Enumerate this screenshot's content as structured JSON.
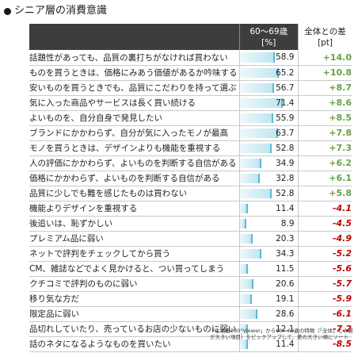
{
  "title": "シニア層の消費意識",
  "header": {
    "age_label": "60～69歳",
    "age_unit": "[%]",
    "diff_label": "全体との差",
    "diff_unit": "[pt]"
  },
  "rows": [
    {
      "label": "話題性があっても、品質の裏打ちがなければ買わない",
      "value": 58.9,
      "value_text": "58.9",
      "diff": "+14.0"
    },
    {
      "label": "ものを買うときは、価格にみあう価値があるか吟味する",
      "value": 65.2,
      "value_text": "65.2",
      "diff": "+10.8"
    },
    {
      "label": "安いものを買うときでも、品質にこだわりを持って選ぶ",
      "value": 56.7,
      "value_text": "56.7",
      "diff": "+8.7"
    },
    {
      "label": "気に入った商品やサービスは長く買い続ける",
      "value": 71.4,
      "value_text": "71.4",
      "diff": "+8.6"
    },
    {
      "label": "よいものを、自分自身で発見したい",
      "value": 55.9,
      "value_text": "55.9",
      "diff": "+8.5"
    },
    {
      "label": "ブランドにかかわらず、自分が気に入ったモノが最高",
      "value": 63.7,
      "value_text": "63.7",
      "diff": "+7.8"
    },
    {
      "label": "モノを買うときは、デザインよりも機能を重視する",
      "value": 52.8,
      "value_text": "52.8",
      "diff": "+7.3"
    },
    {
      "label": "人の評価にかかわらず、よいものを判断する自信がある",
      "value": 34.9,
      "value_text": "34.9",
      "diff": "+6.2"
    },
    {
      "label": "価格にかかわらず、よいものを判断する自信がある",
      "value": 32.8,
      "value_text": "32.8",
      "diff": "+6.1"
    },
    {
      "label": "品質に少しでも難を感じたものは買わない",
      "value": 52.8,
      "value_text": "52.8",
      "diff": "+5.8"
    },
    {
      "label": "機能よりデザインを重視する",
      "value": 11.4,
      "value_text": "11.4",
      "diff": "-4.1"
    },
    {
      "label": "後追いは、恥ずかしい",
      "value": 8.9,
      "value_text": "8.9",
      "diff": "-4.5"
    },
    {
      "label": "プレミアム品に弱い",
      "value": 20.3,
      "value_text": "20.3",
      "diff": "-4.9"
    },
    {
      "label": "ネットで評判をチェックしてから買う",
      "value": 34.3,
      "value_text": "34.3",
      "diff": "-5.2"
    },
    {
      "label": "CM、雑誌などでよく見かけると、つい買ってしまう",
      "value": 11.5,
      "value_text": "11.5",
      "diff": "-5.6"
    },
    {
      "label": "クチコミで評判のものに弱い",
      "value": 20.6,
      "value_text": "20.6",
      "diff": "-5.7"
    },
    {
      "label": "移り気な方だ",
      "value": 19.1,
      "value_text": "19.1",
      "diff": "-5.9"
    },
    {
      "label": "限定品に弱い",
      "value": 28.6,
      "value_text": "28.6",
      "diff": "-6.1"
    },
    {
      "label": "品切れしていたり、売っているお店の少ないものに弱い",
      "value": 12.1,
      "value_text": "12.1",
      "diff": "-7.2"
    },
    {
      "label": "話のネタになるようなものを買いたい",
      "value": 11.4,
      "value_text": "11.4",
      "diff": "-8.5"
    }
  ],
  "note": "「生活者360°Viewer」から60～69歳の特徴（「全体」との差が大きい項目）をピックアップして、差の大きい順にソート",
  "colors": {
    "positive": "#67a14a",
    "negative": "#c00000",
    "bar_edge": "#5cb8d1",
    "header_bg": "#3d3d3d"
  }
}
